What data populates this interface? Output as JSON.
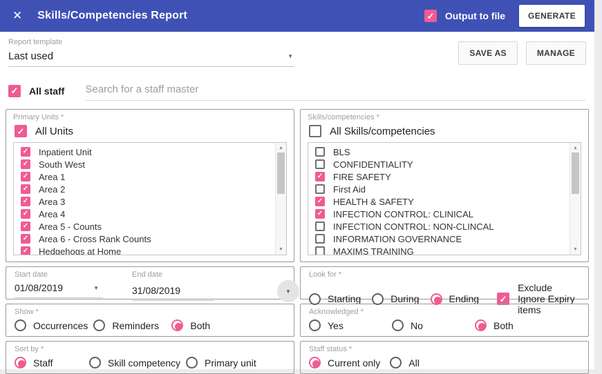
{
  "colors": {
    "accent_pink": "#ef5b93",
    "header_indigo": "#3f51b5"
  },
  "header": {
    "title": "Skills/Competencies Report",
    "output_to_file_label": "Output to file",
    "output_to_file_checked": true,
    "generate_label": "GENERATE"
  },
  "template_bar": {
    "label": "Report template",
    "value": "Last used",
    "save_as_label": "SAVE AS",
    "manage_label": "MANAGE"
  },
  "staff_row": {
    "all_staff_label": "All staff",
    "all_staff_checked": true,
    "search_placeholder": "Search for a staff master"
  },
  "primary_units": {
    "label": "Primary Units *",
    "all_label": "All Units",
    "all_checked": true,
    "items": [
      {
        "label": "Inpatient Unit",
        "checked": true
      },
      {
        "label": "South West",
        "checked": true
      },
      {
        "label": "Area 1",
        "checked": true
      },
      {
        "label": "Area 2",
        "checked": true
      },
      {
        "label": "Area 3",
        "checked": true
      },
      {
        "label": "Area 4",
        "checked": true
      },
      {
        "label": "Area 5 - Counts",
        "checked": true
      },
      {
        "label": "Area 6 - Cross Rank Counts",
        "checked": true
      },
      {
        "label": "Hedgehogs at Home",
        "checked": true
      },
      {
        "label": "",
        "checked": true
      }
    ]
  },
  "skills": {
    "label": "Skills/competencies *",
    "all_label": "All Skills/competencies",
    "all_checked": false,
    "items": [
      {
        "label": "BLS",
        "checked": false
      },
      {
        "label": "CONFIDENTIALITY",
        "checked": false
      },
      {
        "label": "FIRE SAFETY",
        "checked": true
      },
      {
        "label": "First Aid",
        "checked": false
      },
      {
        "label": "HEALTH & SAFETY",
        "checked": true
      },
      {
        "label": "INFECTION CONTROL: CLINICAL",
        "checked": true
      },
      {
        "label": "INFECTION CONTROL: NON-CLINCAL",
        "checked": false
      },
      {
        "label": "INFORMATION GOVERNANCE",
        "checked": false
      },
      {
        "label": "MAXIMS TRAINING",
        "checked": false
      },
      {
        "label": "",
        "checked": false
      }
    ]
  },
  "dates": {
    "start_label": "Start date",
    "start_value": "01/08/2019",
    "end_label": "End date",
    "end_value": "31/08/2019"
  },
  "look_for": {
    "label": "Look for *",
    "options": [
      {
        "label": "Starting",
        "selected": false
      },
      {
        "label": "During",
        "selected": false
      },
      {
        "label": "Ending",
        "selected": true
      }
    ],
    "exclude_label": "Exclude Ignore Expiry items",
    "exclude_checked": true
  },
  "show": {
    "label": "Show *",
    "options": [
      {
        "label": "Occurrences",
        "selected": false
      },
      {
        "label": "Reminders",
        "selected": false
      },
      {
        "label": "Both",
        "selected": true
      }
    ]
  },
  "acknowledged": {
    "label": "Acknowledged *",
    "options": [
      {
        "label": "Yes",
        "selected": false
      },
      {
        "label": "No",
        "selected": false
      },
      {
        "label": "Both",
        "selected": true
      }
    ]
  },
  "sort_by": {
    "label": "Sort by *",
    "options": [
      {
        "label": "Staff",
        "selected": true
      },
      {
        "label": "Skill competency",
        "selected": false
      },
      {
        "label": "Primary unit",
        "selected": false
      }
    ]
  },
  "staff_status": {
    "label": "Staff status *",
    "options": [
      {
        "label": "Current only",
        "selected": true
      },
      {
        "label": "All",
        "selected": false
      }
    ]
  }
}
